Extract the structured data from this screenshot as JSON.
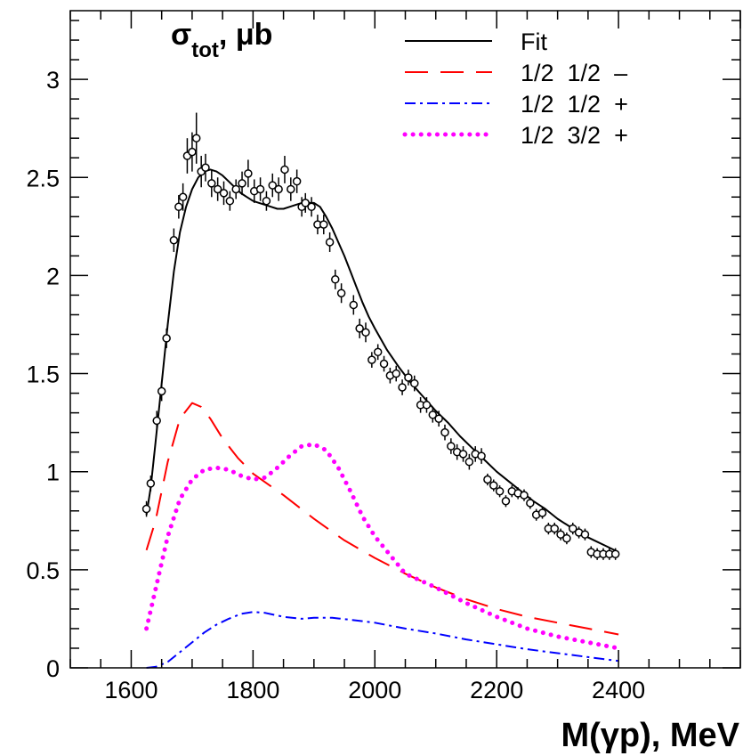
{
  "chart_data": {
    "type": "scatter",
    "title": "",
    "xlabel": "M(γp), MeV",
    "ylabel": "σtot, μb",
    "xlim": [
      1500,
      2600
    ],
    "ylim": [
      0,
      3.35
    ],
    "x_ticks": [
      1600,
      1800,
      2000,
      2200,
      2400
    ],
    "x_tick_labels": [
      "1600",
      "1800",
      "2000",
      "2200",
      "2400"
    ],
    "y_ticks": [
      0,
      0.5,
      1,
      1.5,
      2,
      2.5,
      3
    ],
    "y_tick_labels": [
      "0",
      "0.5",
      "1",
      "1.5",
      "2",
      "2.5",
      "3"
    ],
    "grid": false,
    "legend_position": "top-right",
    "series": [
      {
        "name": "Fit",
        "kind": "line",
        "style": "solid",
        "color": "#000000",
        "x": [
          1625,
          1632,
          1640,
          1650,
          1660,
          1670,
          1680,
          1690,
          1700,
          1710,
          1720,
          1730,
          1740,
          1750,
          1760,
          1770,
          1780,
          1790,
          1800,
          1810,
          1820,
          1830,
          1840,
          1850,
          1860,
          1870,
          1880,
          1890,
          1900,
          1910,
          1920,
          1930,
          1940,
          1950,
          1960,
          1970,
          1980,
          1990,
          2000,
          2020,
          2040,
          2060,
          2080,
          2100,
          2120,
          2140,
          2160,
          2180,
          2200,
          2220,
          2240,
          2260,
          2280,
          2300,
          2320,
          2340,
          2360,
          2380,
          2400
        ],
        "y": [
          0.78,
          0.92,
          1.15,
          1.45,
          1.75,
          2.02,
          2.22,
          2.35,
          2.44,
          2.5,
          2.53,
          2.54,
          2.53,
          2.51,
          2.48,
          2.45,
          2.42,
          2.4,
          2.38,
          2.37,
          2.36,
          2.35,
          2.34,
          2.34,
          2.35,
          2.36,
          2.37,
          2.37,
          2.37,
          2.35,
          2.3,
          2.24,
          2.17,
          2.1,
          2.02,
          1.94,
          1.86,
          1.79,
          1.73,
          1.62,
          1.53,
          1.45,
          1.38,
          1.31,
          1.25,
          1.18,
          1.12,
          1.06,
          1.0,
          0.95,
          0.9,
          0.85,
          0.81,
          0.76,
          0.72,
          0.68,
          0.65,
          0.62,
          0.59
        ]
      },
      {
        "name": "1/2  1/2  –",
        "kind": "line",
        "style": "dashed",
        "color": "#ff0000",
        "x": [
          1625,
          1640,
          1660,
          1680,
          1700,
          1715,
          1730,
          1750,
          1775,
          1800,
          1850,
          1900,
          1950,
          2000,
          2050,
          2100,
          2150,
          2200,
          2250,
          2300,
          2350,
          2400
        ],
        "y": [
          0.6,
          0.75,
          1.05,
          1.27,
          1.35,
          1.33,
          1.27,
          1.17,
          1.07,
          0.99,
          0.88,
          0.76,
          0.65,
          0.56,
          0.48,
          0.41,
          0.35,
          0.3,
          0.26,
          0.23,
          0.2,
          0.17
        ]
      },
      {
        "name": "1/2  1/2  +",
        "kind": "line",
        "style": "dashdot",
        "color": "#0000ff",
        "x": [
          1625,
          1640,
          1660,
          1680,
          1700,
          1720,
          1740,
          1760,
          1780,
          1800,
          1820,
          1850,
          1880,
          1900,
          1930,
          1960,
          2000,
          2050,
          2100,
          2150,
          2200,
          2250,
          2300,
          2350,
          2400
        ],
        "y": [
          0.0,
          0.005,
          0.03,
          0.08,
          0.13,
          0.18,
          0.22,
          0.25,
          0.275,
          0.285,
          0.28,
          0.26,
          0.25,
          0.255,
          0.255,
          0.245,
          0.23,
          0.2,
          0.175,
          0.145,
          0.12,
          0.095,
          0.075,
          0.055,
          0.035
        ]
      },
      {
        "name": "1/2  3/2  +",
        "kind": "line",
        "style": "dotted",
        "color": "#ff00ff",
        "x": [
          1625,
          1640,
          1660,
          1680,
          1700,
          1720,
          1740,
          1760,
          1780,
          1800,
          1820,
          1840,
          1860,
          1880,
          1900,
          1920,
          1940,
          1960,
          1980,
          2000,
          2050,
          2100,
          2150,
          2200,
          2250,
          2300,
          2350,
          2400
        ],
        "y": [
          0.2,
          0.4,
          0.67,
          0.86,
          0.96,
          1.01,
          1.02,
          1.01,
          0.98,
          0.96,
          0.97,
          1.02,
          1.08,
          1.13,
          1.14,
          1.11,
          1.02,
          0.9,
          0.77,
          0.67,
          0.48,
          0.41,
          0.33,
          0.26,
          0.2,
          0.16,
          0.13,
          0.1
        ]
      },
      {
        "name": "",
        "kind": "points",
        "color": "#000000",
        "x": [
          1625,
          1632,
          1642,
          1650,
          1658,
          1670,
          1678,
          1685,
          1692,
          1700,
          1707,
          1715,
          1722,
          1732,
          1742,
          1752,
          1762,
          1772,
          1782,
          1792,
          1802,
          1812,
          1822,
          1832,
          1842,
          1852,
          1862,
          1872,
          1880,
          1886,
          1896,
          1906,
          1916,
          1926,
          1935,
          1945,
          1965,
          1975,
          1985,
          1995,
          2005,
          2015,
          2025,
          2035,
          2045,
          2055,
          2065,
          2075,
          2085,
          2095,
          2105,
          2115,
          2125,
          2135,
          2145,
          2155,
          2165,
          2175,
          2185,
          2195,
          2205,
          2215,
          2225,
          2235,
          2245,
          2255,
          2265,
          2275,
          2285,
          2295,
          2305,
          2315,
          2325,
          2335,
          2345,
          2355,
          2365,
          2375,
          2385,
          2395
        ],
        "y": [
          0.81,
          0.94,
          1.26,
          1.41,
          1.68,
          2.18,
          2.35,
          2.4,
          2.61,
          2.63,
          2.7,
          2.53,
          2.55,
          2.47,
          2.44,
          2.42,
          2.38,
          2.44,
          2.47,
          2.52,
          2.43,
          2.44,
          2.38,
          2.46,
          2.44,
          2.54,
          2.44,
          2.48,
          2.35,
          2.37,
          2.35,
          2.26,
          2.26,
          2.17,
          1.98,
          1.91,
          1.85,
          1.73,
          1.71,
          1.57,
          1.61,
          1.55,
          1.49,
          1.5,
          1.43,
          1.48,
          1.45,
          1.34,
          1.34,
          1.29,
          1.27,
          1.2,
          1.13,
          1.1,
          1.09,
          1.05,
          1.09,
          1.08,
          0.96,
          0.93,
          0.9,
          0.85,
          0.9,
          0.89,
          0.88,
          0.84,
          0.78,
          0.79,
          0.71,
          0.71,
          0.68,
          0.66,
          0.71,
          0.69,
          0.68,
          0.59,
          0.58,
          0.58,
          0.58,
          0.58
        ],
        "yerr": [
          0.04,
          0.04,
          0.05,
          0.05,
          0.05,
          0.06,
          0.06,
          0.07,
          0.09,
          0.1,
          0.13,
          0.08,
          0.07,
          0.07,
          0.06,
          0.06,
          0.05,
          0.05,
          0.06,
          0.07,
          0.06,
          0.06,
          0.05,
          0.06,
          0.06,
          0.07,
          0.06,
          0.06,
          0.05,
          0.05,
          0.05,
          0.05,
          0.05,
          0.05,
          0.05,
          0.05,
          0.05,
          0.05,
          0.05,
          0.04,
          0.04,
          0.04,
          0.04,
          0.04,
          0.04,
          0.04,
          0.04,
          0.04,
          0.04,
          0.04,
          0.04,
          0.04,
          0.04,
          0.04,
          0.04,
          0.04,
          0.04,
          0.04,
          0.03,
          0.03,
          0.03,
          0.03,
          0.03,
          0.03,
          0.03,
          0.03,
          0.03,
          0.03,
          0.03,
          0.03,
          0.03,
          0.03,
          0.03,
          0.03,
          0.03,
          0.03,
          0.03,
          0.03,
          0.03,
          0.03
        ]
      }
    ]
  }
}
